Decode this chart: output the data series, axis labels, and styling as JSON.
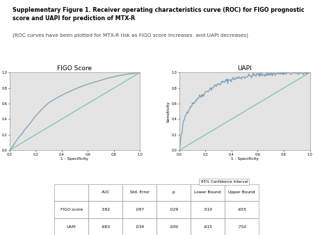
{
  "title_bold": "Supplementary Figure 1. Receiver operating characteristics curve (ROC) for FIGO prognostic\nscore and UAPI for prediction of MTX-R",
  "title_italic": "(ROC curves have been plotted for MTX-R risk as FIGO score increases  and UAPI decreases)",
  "plot1_title": "FIGO Score",
  "plot2_title": "UAPI",
  "xlabel": "1 - Specificity",
  "ylabel": "Sensitivity",
  "bg_color": "#e4e4e4",
  "roc_color": "#7a9db5",
  "diag_color": "#7ec49a",
  "table_rows": [
    [
      "FIGO score",
      ".582",
      ".097",
      ".029",
      ".510",
      ".655"
    ],
    [
      "UAPI",
      ".683",
      ".034",
      ".000",
      ".615",
      ".750"
    ]
  ],
  "figo_roc_x": [
    0.0,
    0.01,
    0.02,
    0.04,
    0.06,
    0.09,
    0.12,
    0.16,
    0.2,
    0.25,
    0.3,
    0.37,
    0.44,
    0.52,
    0.6,
    0.68,
    0.76,
    0.84,
    0.91,
    0.96,
    1.0
  ],
  "figo_roc_y": [
    0.0,
    0.01,
    0.04,
    0.09,
    0.14,
    0.2,
    0.27,
    0.35,
    0.44,
    0.53,
    0.61,
    0.68,
    0.74,
    0.8,
    0.85,
    0.89,
    0.93,
    0.96,
    0.98,
    0.99,
    1.0
  ],
  "uapi_roc_x": [
    0.0,
    0.005,
    0.01,
    0.015,
    0.02,
    0.025,
    0.03,
    0.04,
    0.05,
    0.07,
    0.09,
    0.11,
    0.13,
    0.15,
    0.17,
    0.19,
    0.22,
    0.25,
    0.28,
    0.3,
    0.33,
    0.36,
    0.4,
    0.45,
    0.52,
    0.6,
    0.7,
    0.8,
    0.9,
    1.0
  ],
  "uapi_roc_y": [
    0.0,
    0.05,
    0.12,
    0.18,
    0.22,
    0.28,
    0.34,
    0.4,
    0.46,
    0.52,
    0.57,
    0.61,
    0.65,
    0.68,
    0.7,
    0.73,
    0.77,
    0.8,
    0.83,
    0.85,
    0.87,
    0.89,
    0.91,
    0.93,
    0.95,
    0.97,
    0.98,
    0.99,
    0.99,
    1.0
  ],
  "xticks": [
    0.0,
    0.2,
    0.4,
    0.6,
    0.8,
    1.0
  ],
  "yticks": [
    0.0,
    0.2,
    0.4,
    0.6,
    0.8,
    1.0
  ],
  "tick_labels": [
    "0.0",
    "0.2",
    "0.4",
    "0.6",
    "0.8",
    "1.0"
  ]
}
